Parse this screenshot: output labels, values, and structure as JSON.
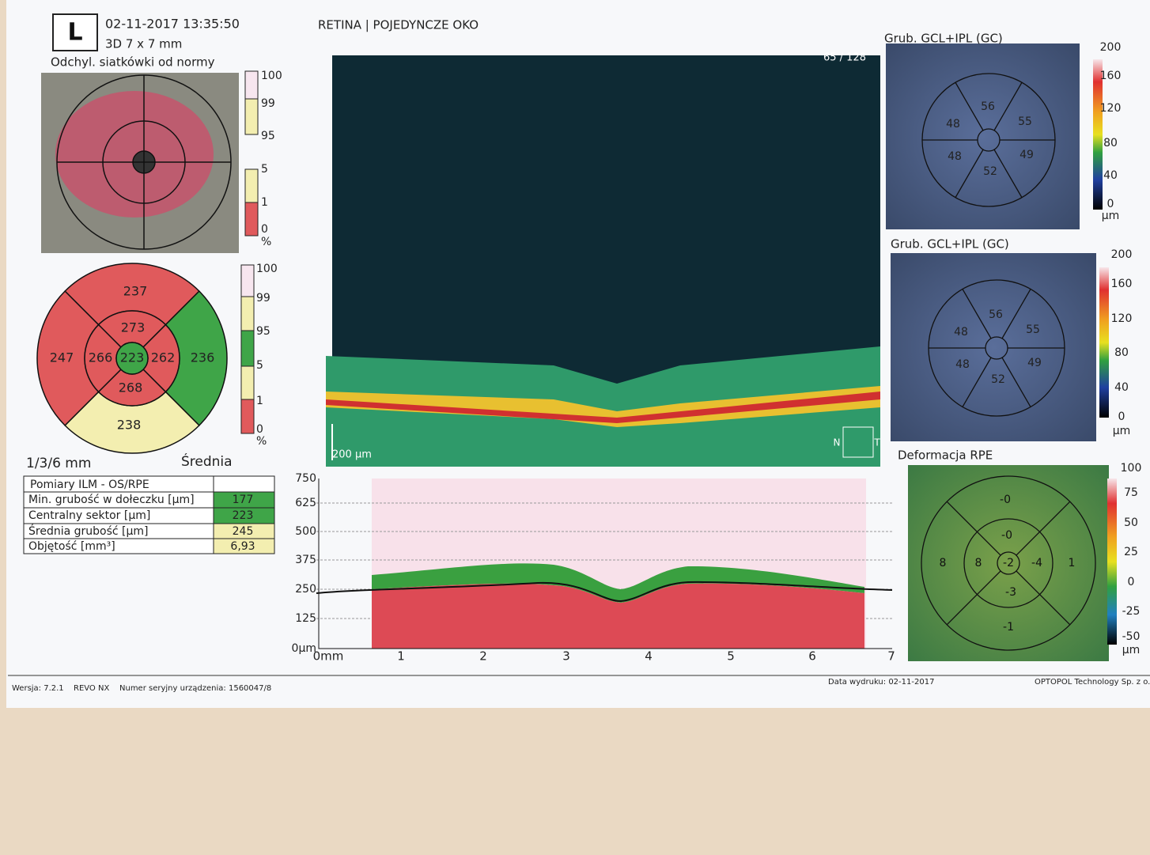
{
  "header": {
    "eye": "L",
    "datetime": "02-11-2017 13:35:50",
    "scan": "3D  7 x 7 mm",
    "mode": "RETINA | POJEDYNCZE OKO"
  },
  "deviation_map": {
    "title": "Odchyl. siatkówki od normy",
    "scale_top": [
      "100",
      "99",
      "95"
    ],
    "scale_bottom": [
      "5",
      "1",
      "0",
      "%"
    ]
  },
  "sector_map": {
    "outer_top": "237",
    "middle_top": "273",
    "outer_left": "247",
    "middle_left": "266",
    "center": "223",
    "middle_right": "262",
    "outer_right": "236",
    "middle_bottom": "268",
    "outer_bottom": "238",
    "scale": [
      "100",
      "99",
      "95",
      "5",
      "1",
      "0",
      "%"
    ],
    "grid_label": "1/3/6 mm",
    "stat": "Średnia"
  },
  "measurements": {
    "header": "Pomiary ILM - OS/RPE",
    "rows": [
      [
        "Min. grubość w dołeczku [µm]",
        "177"
      ],
      [
        "Centralny sektor [µm]",
        "223"
      ],
      [
        "Średnia grubość [µm]",
        "245"
      ],
      [
        "Objętość [mm³]",
        "6,93"
      ]
    ]
  },
  "bscan": {
    "frame": "65 / 128",
    "scalebar": "200 µm",
    "nasal": "N",
    "temporal": "T"
  },
  "profile": {
    "y_labels": [
      "750",
      "625",
      "500",
      "375",
      "250",
      "125",
      "0µm"
    ],
    "x_labels": [
      "0mm",
      "1",
      "2",
      "3",
      "4",
      "5",
      "6",
      "7"
    ]
  },
  "gcl_map_1": {
    "title": "Grub. GCL+IPL (GC)",
    "sectors": {
      "top": "56",
      "top_right": "55",
      "bottom_right": "49",
      "bottom": "52",
      "bottom_left": "48",
      "top_left": "48"
    },
    "scale": [
      "200",
      "160",
      "120",
      "80",
      "40",
      "0",
      "µm"
    ]
  },
  "gcl_map_2": {
    "title": "Grub. GCL+IPL (GC)",
    "sectors": {
      "top": "56",
      "top_right": "55",
      "bottom_right": "49",
      "bottom": "52",
      "bottom_left": "48",
      "top_left": "48"
    },
    "scale": [
      "200",
      "160",
      "120",
      "80",
      "40",
      "0",
      "µm"
    ]
  },
  "rpe_map": {
    "title": "Deformacja RPE",
    "sectors": {
      "outer_top": "-0",
      "inner_top": "-0",
      "center": "-2",
      "inner_left": "8",
      "outer_left": "8",
      "inner_right": "-4",
      "outer_right": "1",
      "inner_bottom": "-3",
      "outer_bottom": "-1"
    },
    "scale": [
      "100",
      "75",
      "50",
      "25",
      "0",
      "-25",
      "-50",
      "µm"
    ]
  },
  "footer": {
    "version": "Wersja: 7.2.1",
    "device": "REVO NX",
    "serial": "Numer seryjny urządzenia: 1560047/8",
    "print_date": "Data wydruku: 02-11-2017",
    "company": "OPTOPOL Technology Sp. z o.o"
  }
}
